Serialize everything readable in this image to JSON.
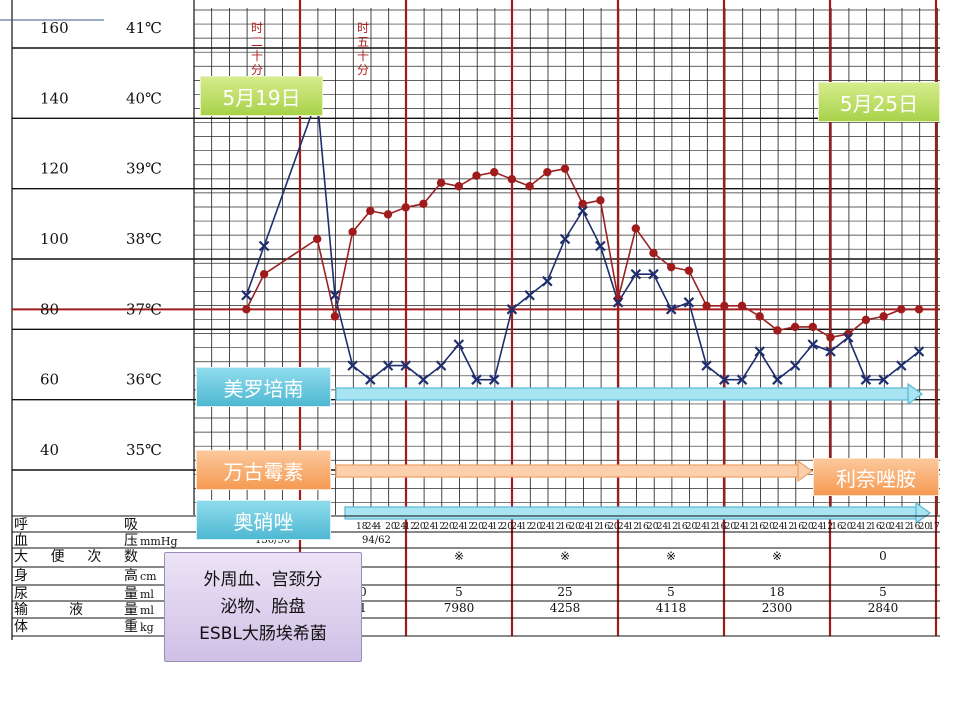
{
  "left_scale": {
    "pulse_ticks": [
      "160",
      "140",
      "120",
      "100",
      "80",
      "60",
      "40"
    ],
    "temp_ticks": [
      "41℃",
      "40℃",
      "39℃",
      "38℃",
      "37℃",
      "36℃",
      "35℃"
    ]
  },
  "header_annotations": [
    "时二十分",
    "时五十分"
  ],
  "date_labels": {
    "start": "5月19日",
    "end": "5月25日"
  },
  "drug_labels": {
    "meropenem": "美罗培南",
    "vancomycin": "万古霉素",
    "linezolid": "利奈唑胺",
    "omeprazole": "奥硝唑"
  },
  "culture_note": [
    "外周血、宫颈分",
    "泌物、胎盘",
    "ESBL大肠埃希菌"
  ],
  "table": {
    "row_labels": [
      "呼　　吸",
      "血　　压",
      "大便次数",
      "身　　高",
      "尿　　量",
      "输　液　量",
      "体　　重"
    ],
    "row_units": [
      "",
      "mmHg",
      "",
      "cm",
      "ml",
      "ml",
      "kg"
    ],
    "bp_values": [
      "130/90",
      "94/62"
    ],
    "stool_values": [
      "※",
      "※",
      "※",
      "※",
      "0"
    ],
    "urine_values": [
      "0",
      "5",
      "25",
      "5",
      "18",
      "5"
    ],
    "infusion_values": [
      "1",
      "7980",
      "4258",
      "4118",
      "2300",
      "2840"
    ],
    "time_labels": [
      "18",
      "24",
      "4",
      "20",
      "24",
      "12",
      "20",
      "24",
      "12",
      "20",
      "24",
      "12",
      "20",
      "24",
      "12",
      "20",
      "24",
      "12",
      "20",
      "24",
      "12",
      "16",
      "20",
      "24",
      "12",
      "16",
      "20",
      "24",
      "12",
      "16",
      "20",
      "24",
      "12",
      "16",
      "20",
      "24",
      "12",
      "16",
      "20",
      "24",
      "12",
      "16",
      "20",
      "24",
      "12",
      "16",
      "20",
      "24",
      "12",
      "16",
      "20",
      "24",
      "12",
      "16",
      "20",
      "24",
      "12",
      "16",
      "20",
      "17"
    ]
  },
  "chart_data": {
    "type": "line",
    "x": [
      1,
      2,
      3,
      4,
      5,
      6,
      7,
      8,
      9,
      10,
      11,
      12,
      13,
      14,
      15,
      16,
      17,
      18,
      19,
      20,
      21,
      22,
      23,
      24,
      25,
      26,
      27,
      28,
      29,
      30,
      31,
      32,
      33,
      34,
      35,
      36,
      37,
      38,
      39,
      40,
      41,
      42
    ],
    "ylim_pulse": [
      40,
      160
    ],
    "ylim_temp": [
      35,
      41
    ],
    "reference_line_temp": 37,
    "series": [
      {
        "marker": "dot",
        "color": "#a01c1c",
        "unit": "℃",
        "points": [
          [
            3,
            37.0
          ],
          [
            4,
            37.5
          ],
          [
            7,
            38.0
          ],
          [
            8,
            36.9
          ],
          [
            9,
            38.1
          ],
          [
            10,
            38.4
          ],
          [
            11,
            38.35
          ],
          [
            12,
            38.45
          ],
          [
            13,
            38.5
          ],
          [
            14,
            38.8
          ],
          [
            15,
            38.75
          ],
          [
            16,
            38.9
          ],
          [
            17,
            38.95
          ],
          [
            18,
            38.85
          ],
          [
            19,
            38.75
          ],
          [
            20,
            38.95
          ],
          [
            21,
            39.0
          ],
          [
            22,
            38.5
          ],
          [
            23,
            38.55
          ],
          [
            24,
            37.15
          ],
          [
            25,
            38.15
          ],
          [
            26,
            37.8
          ],
          [
            27,
            37.6
          ],
          [
            28,
            37.55
          ],
          [
            29,
            37.05
          ],
          [
            30,
            37.05
          ],
          [
            31,
            37.05
          ],
          [
            32,
            36.9
          ],
          [
            33,
            36.7
          ],
          [
            34,
            36.75
          ],
          [
            35,
            36.75
          ],
          [
            36,
            36.6
          ],
          [
            37,
            36.65
          ],
          [
            38,
            36.85
          ],
          [
            39,
            36.9
          ],
          [
            40,
            37.0
          ],
          [
            41,
            37.0
          ]
        ]
      },
      {
        "marker": "cross",
        "color": "#1e2e6e",
        "unit": "次/分",
        "points": [
          [
            3,
            84
          ],
          [
            4,
            98
          ],
          [
            7,
            140
          ],
          [
            8,
            84
          ],
          [
            9,
            64
          ],
          [
            10,
            60
          ],
          [
            11,
            64
          ],
          [
            12,
            64
          ],
          [
            13,
            60
          ],
          [
            14,
            64
          ],
          [
            15,
            70
          ],
          [
            16,
            60
          ],
          [
            17,
            60
          ],
          [
            18,
            80
          ],
          [
            19,
            84
          ],
          [
            20,
            88
          ],
          [
            21,
            100
          ],
          [
            22,
            108
          ],
          [
            23,
            98
          ],
          [
            24,
            82
          ],
          [
            25,
            90
          ],
          [
            26,
            90
          ],
          [
            27,
            80
          ],
          [
            28,
            82
          ],
          [
            29,
            64
          ],
          [
            30,
            60
          ],
          [
            31,
            60
          ],
          [
            32,
            68
          ],
          [
            33,
            60
          ],
          [
            34,
            64
          ],
          [
            35,
            70
          ],
          [
            36,
            68
          ],
          [
            37,
            72
          ],
          [
            38,
            60
          ],
          [
            39,
            60
          ],
          [
            40,
            64
          ],
          [
            41,
            68
          ]
        ]
      }
    ]
  }
}
